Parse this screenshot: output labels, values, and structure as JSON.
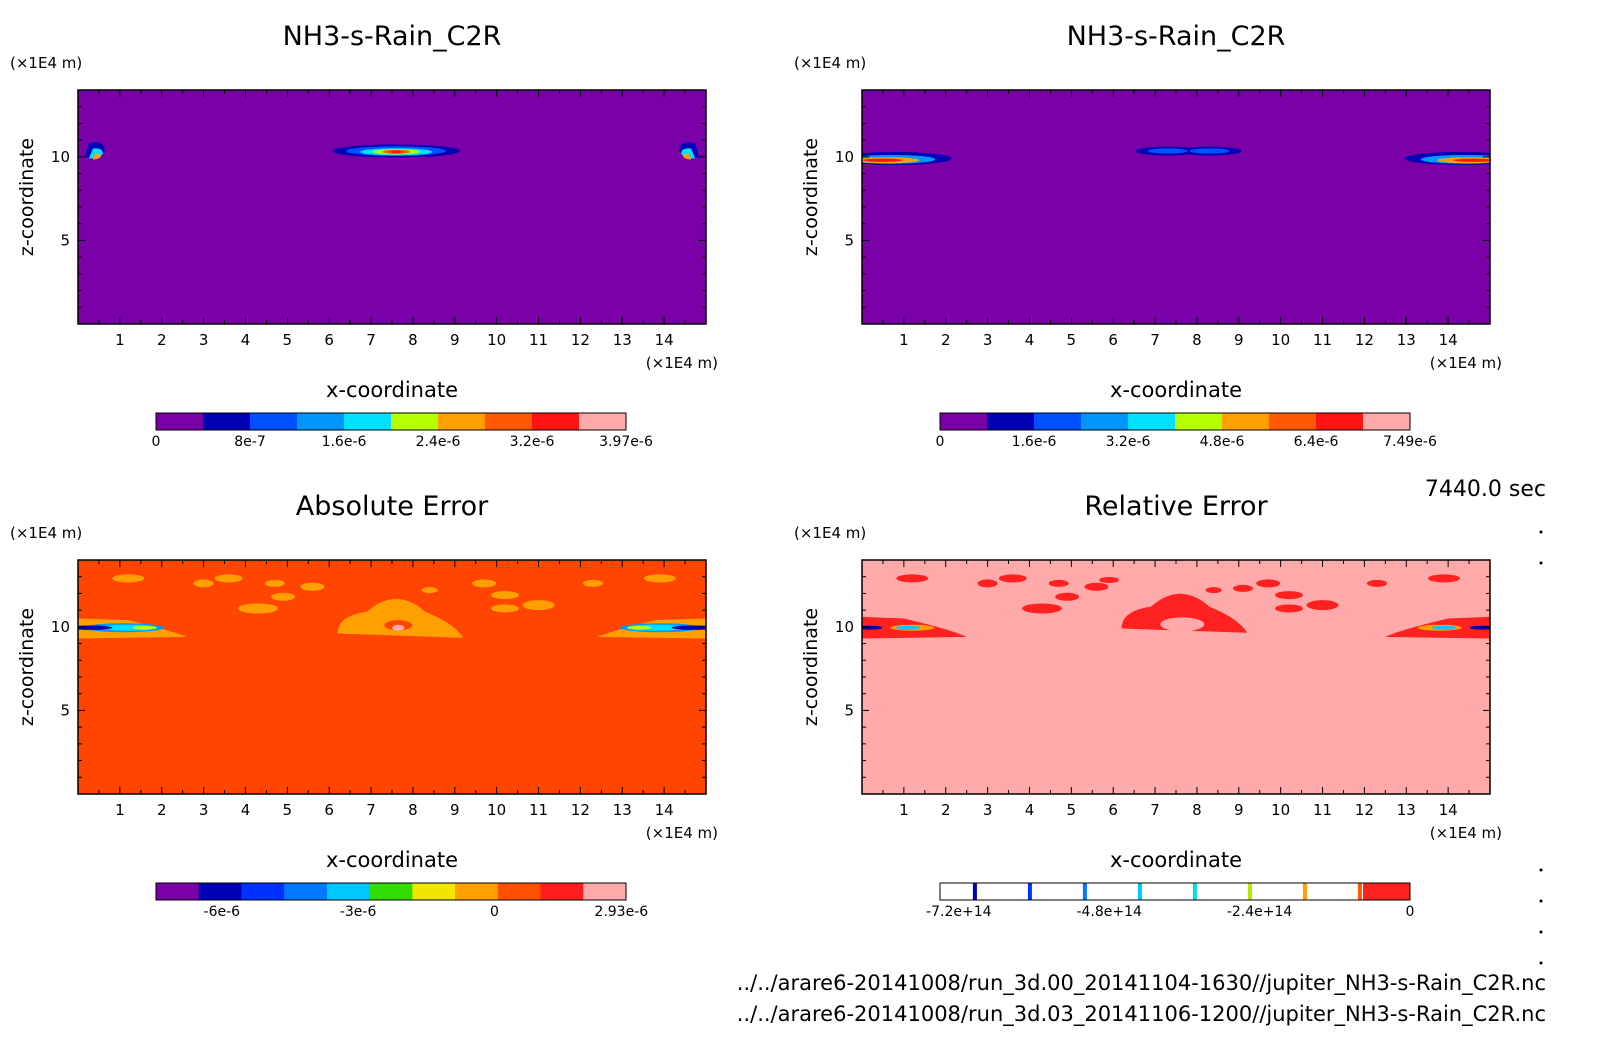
{
  "footer": {
    "time": "7440.0 sec",
    "paths": [
      "../../arare6-20141008/run_3d.00_20141104-1630//jupiter_NH3-s-Rain_C2R.nc",
      "../../arare6-20141008/run_3d.03_20141106-1200//jupiter_NH3-s-Rain_C2R.nc"
    ]
  },
  "chart_data": [
    {
      "type": "heatmap",
      "title": "NH3-s-Rain_C2R",
      "xlabel": "x-coordinate",
      "ylabel": "z-coordinate",
      "x_unit": "(×1E4 m)",
      "y_unit": "(×1E4 m)",
      "x_ticks": [
        "1",
        "2",
        "3",
        "4",
        "5",
        "6",
        "7",
        "8",
        "9",
        "10",
        "11",
        "12",
        "13",
        "14"
      ],
      "y_ticks": [
        "5",
        "10"
      ],
      "xlim": [
        0,
        15
      ],
      "ylim": [
        0,
        14
      ],
      "background_color": "#7a00a8",
      "features": [
        {
          "x": 7.6,
          "z": 10.4,
          "peak": "high"
        },
        {
          "x": 0.4,
          "z": 10.0,
          "peak": "medium"
        },
        {
          "x": 14.6,
          "z": 10.0,
          "peak": "medium"
        }
      ],
      "colorbar": {
        "colors": [
          "#7a00a8",
          "#0000b4",
          "#0050ff",
          "#0096ff",
          "#00e0ff",
          "#b4ff00",
          "#ffa000",
          "#ff5a00",
          "#ff1414",
          "#ffaaaa"
        ],
        "tick_labels": [
          "0",
          "8e-7",
          "1.6e-6",
          "2.4e-6",
          "3.2e-6",
          "3.97e-6"
        ]
      }
    },
    {
      "type": "heatmap",
      "title": "NH3-s-Rain_C2R",
      "xlabel": "x-coordinate",
      "ylabel": "z-coordinate",
      "x_unit": "(×1E4 m)",
      "y_unit": "(×1E4 m)",
      "x_ticks": [
        "1",
        "2",
        "3",
        "4",
        "5",
        "6",
        "7",
        "8",
        "9",
        "10",
        "11",
        "12",
        "13",
        "14"
      ],
      "y_ticks": [
        "5",
        "10"
      ],
      "xlim": [
        0,
        15
      ],
      "ylim": [
        0,
        14
      ],
      "background_color": "#7a00a8",
      "features": [
        {
          "x": 0.9,
          "z": 9.8,
          "peak": "high"
        },
        {
          "x": 14.3,
          "z": 9.8,
          "peak": "high"
        },
        {
          "x": 7.8,
          "z": 10.4,
          "peak": "low"
        }
      ],
      "colorbar": {
        "colors": [
          "#7a00a8",
          "#0000b4",
          "#0050ff",
          "#0096ff",
          "#00e0ff",
          "#b4ff00",
          "#ffa000",
          "#ff5a00",
          "#ff1414",
          "#ffaaaa"
        ],
        "tick_labels": [
          "0",
          "1.6e-6",
          "3.2e-6",
          "4.8e-6",
          "6.4e-6",
          "7.49e-6"
        ]
      }
    },
    {
      "type": "heatmap",
      "title": "Absolute Error",
      "xlabel": "x-coordinate",
      "ylabel": "z-coordinate",
      "x_unit": "(×1E4 m)",
      "y_unit": "(×1E4 m)",
      "x_ticks": [
        "1",
        "2",
        "3",
        "4",
        "5",
        "6",
        "7",
        "8",
        "9",
        "10",
        "11",
        "12",
        "13",
        "14"
      ],
      "y_ticks": [
        "5",
        "10"
      ],
      "xlim": [
        0,
        15
      ],
      "ylim": [
        0,
        14
      ],
      "background_color": "#ff4500",
      "colorbar": {
        "colors": [
          "#7a00a8",
          "#0000b4",
          "#0032ff",
          "#0078ff",
          "#00c8ff",
          "#32dc00",
          "#f0e600",
          "#ffa000",
          "#ff5000",
          "#ff1e1e",
          "#ffaaaa"
        ],
        "tick_labels": [
          "-6e-6",
          "-3e-6",
          "0",
          "2.93e-6"
        ]
      }
    },
    {
      "type": "heatmap",
      "title": "Relative Error",
      "xlabel": "x-coordinate",
      "ylabel": "z-coordinate",
      "x_unit": "(×1E4 m)",
      "y_unit": "(×1E4 m)",
      "x_ticks": [
        "1",
        "2",
        "3",
        "4",
        "5",
        "6",
        "7",
        "8",
        "9",
        "10",
        "11",
        "12",
        "13",
        "14"
      ],
      "y_ticks": [
        "5",
        "10"
      ],
      "xlim": [
        0,
        15
      ],
      "ylim": [
        0,
        14
      ],
      "background_color": "#ffaaaa",
      "colorbar": {
        "colors": [
          "#ffffff",
          "#ffffff",
          "#ffffff",
          "#ffffff",
          "#ffffff",
          "#ffffff",
          "#ffffff",
          "#ffffff",
          "#ffffff",
          "#ff2020"
        ],
        "line_colors": [
          "#0000b4",
          "#0032ff",
          "#0078ff",
          "#00c8ff",
          "#00e0e0",
          "#b4e600",
          "#ffa000",
          "#ff5a00"
        ],
        "tick_labels": [
          "-7.2e+14",
          "-4.8e+14",
          "-2.4e+14",
          "0"
        ]
      }
    }
  ]
}
